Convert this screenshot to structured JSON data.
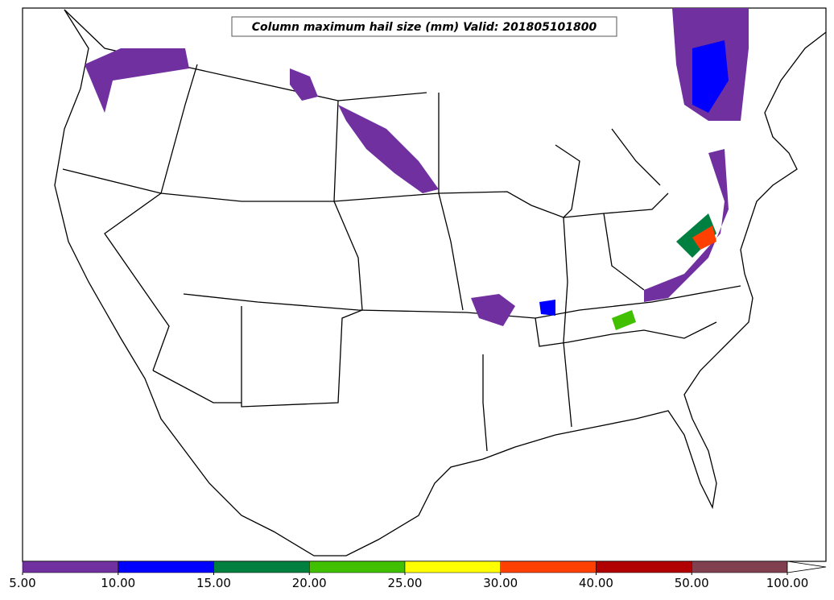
{
  "title": "Column maximum hail size (mm) Valid: 201805101800",
  "colorbar": {
    "ticks": [
      {
        "value": 5,
        "label": "5.00"
      },
      {
        "value": 10,
        "label": "10.00"
      },
      {
        "value": 15,
        "label": "15.00"
      },
      {
        "value": 20,
        "label": "20.00"
      },
      {
        "value": 25,
        "label": "25.00"
      },
      {
        "value": 30,
        "label": "30.00"
      },
      {
        "value": 40,
        "label": "40.00"
      },
      {
        "value": 50,
        "label": "50.00"
      },
      {
        "value": 100,
        "label": "100.00"
      }
    ],
    "colors": [
      "#7030a0",
      "#0000ff",
      "#008040",
      "#40c000",
      "#ffff00",
      "#ff4000",
      "#b00000",
      "#804050"
    ],
    "extend": "max"
  }
}
